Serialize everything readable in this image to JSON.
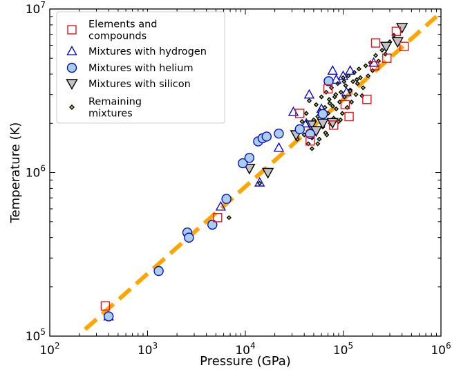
{
  "chart_data": {
    "type": "scatter",
    "title": "",
    "xlabel": "Pressure (GPa)",
    "ylabel": "Temperature (K)",
    "xscale": "log",
    "yscale": "log",
    "xlim": [
      100,
      1000000
    ],
    "ylim": [
      100000,
      10000000
    ],
    "x_ticks": [
      {
        "value": 100,
        "base": "10",
        "exp": "2"
      },
      {
        "value": 1000,
        "base": "10",
        "exp": "3"
      },
      {
        "value": 10000,
        "base": "10",
        "exp": "4"
      },
      {
        "value": 100000,
        "base": "10",
        "exp": "5"
      },
      {
        "value": 1000000,
        "base": "10",
        "exp": "6"
      }
    ],
    "y_ticks": [
      {
        "value": 100000,
        "base": "10",
        "exp": "5"
      },
      {
        "value": 1000000,
        "base": "10",
        "exp": "6"
      },
      {
        "value": 10000000,
        "base": "10",
        "exp": "7"
      }
    ],
    "grid": false,
    "legend_position": "top-left",
    "series": [
      {
        "name": "Elements and compounds",
        "legend_lines": [
          "Elements and",
          "compounds"
        ],
        "marker": "square",
        "stroke": "#e8141b",
        "fill": "none",
        "x": [
          370,
          5200,
          36000,
          46000,
          70000,
          80000,
          105000,
          115000,
          175000,
          210000,
          215000,
          280000,
          350000,
          420000
        ],
        "y": [
          153000,
          530000,
          2300000,
          1560000,
          3250000,
          1950000,
          2600000,
          2200000,
          2800000,
          4500000,
          6200000,
          5000000,
          7300000,
          5900000
        ]
      },
      {
        "name": "Mixtures with hydrogen",
        "legend_lines": [
          "Mixtures with hydrogen"
        ],
        "marker": "triangle-up",
        "stroke": "#0a0ad0",
        "fill": "none",
        "x": [
          400,
          5600,
          14000,
          22000,
          31000,
          42000,
          45000,
          60000,
          78000,
          85000,
          100000,
          108000,
          118000,
          205000
        ],
        "y": [
          132000,
          620000,
          870000,
          1420000,
          2350000,
          2000000,
          3000000,
          2450000,
          4200000,
          3700000,
          3900000,
          3100000,
          4200000,
          4700000
        ]
      },
      {
        "name": "Mixtures with helium",
        "legend_lines": [
          "Mixtures with helium"
        ],
        "marker": "circle",
        "stroke": "#0a0ad0",
        "fill": "#a8d0ea",
        "x": [
          400,
          1300,
          2550,
          2650,
          4600,
          6400,
          9400,
          11000,
          13500,
          15000,
          16500,
          22000,
          36000,
          46000,
          62000,
          71000
        ],
        "y": [
          132000,
          250000,
          430000,
          400000,
          480000,
          690000,
          1140000,
          1230000,
          1550000,
          1620000,
          1660000,
          1730000,
          1840000,
          1720000,
          2280000,
          3620000
        ]
      },
      {
        "name": "Mixtures with silicon",
        "legend_lines": [
          "Mixtures with silicon"
        ],
        "marker": "triangle-down",
        "stroke": "#000000",
        "fill": "#c2c2c2",
        "x": [
          11000,
          17000,
          33000,
          47000,
          53000,
          62000,
          78000,
          275000,
          360000,
          400000
        ],
        "y": [
          1060000,
          1000000,
          1700000,
          1950000,
          1800000,
          2000000,
          2020000,
          5900000,
          6300000,
          7700000
        ]
      },
      {
        "name": "Remaining mixtures",
        "legend_lines": [
          "Remaining",
          "mixtures"
        ],
        "marker": "diamond",
        "stroke": "#000000",
        "fill": "#b8c94a",
        "x": [
          6800,
          14000,
          34000,
          38000,
          40000,
          42000,
          44000,
          45000,
          47000,
          48000,
          50000,
          52000,
          53000,
          55000,
          57000,
          58000,
          60000,
          62000,
          63000,
          65000,
          67000,
          68000,
          70000,
          72000,
          74000,
          76000,
          78000,
          80000,
          82000,
          85000,
          88000,
          90000,
          92000,
          95000,
          98000,
          100000,
          103000,
          106000,
          110000,
          113000,
          118000,
          122000,
          126000,
          130000,
          135000,
          140000,
          145000,
          150000,
          160000,
          170000,
          180000,
          190000,
          200000,
          215000,
          230000,
          250000,
          270000,
          300000,
          330000,
          370000,
          48000,
          55000,
          66000,
          73000,
          84000,
          94000,
          102000,
          118000,
          138000,
          156000
        ],
        "y": [
          530000,
          860000,
          1600000,
          2050000,
          1700000,
          2300000,
          1500000,
          2750000,
          1900000,
          1400000,
          2100000,
          1800000,
          2600000,
          2200000,
          1600000,
          2400000,
          2900000,
          1900000,
          2050000,
          2500000,
          3100000,
          1700000,
          2300000,
          2800000,
          2000000,
          3300000,
          2550000,
          2150000,
          2900000,
          2450000,
          3500000,
          2050000,
          2700000,
          3100000,
          2300000,
          3800000,
          2900000,
          3400000,
          2500000,
          3900000,
          3200000,
          2700000,
          3600000,
          4100000,
          3000000,
          3500000,
          4300000,
          3800000,
          3300000,
          4500000,
          3900000,
          4700000,
          4200000,
          5200000,
          4800000,
          5600000,
          5300000,
          6300000,
          6900000,
          6500000,
          1630000,
          1500000,
          1750000,
          2650000,
          3000000,
          2100000,
          3600000,
          3150000,
          3700000,
          2950000
        ]
      }
    ],
    "fit_line": {
      "x": [
        230,
        900000
      ],
      "y": [
        110000,
        9000000
      ],
      "color": "#ffa500",
      "style": "dashed"
    }
  }
}
